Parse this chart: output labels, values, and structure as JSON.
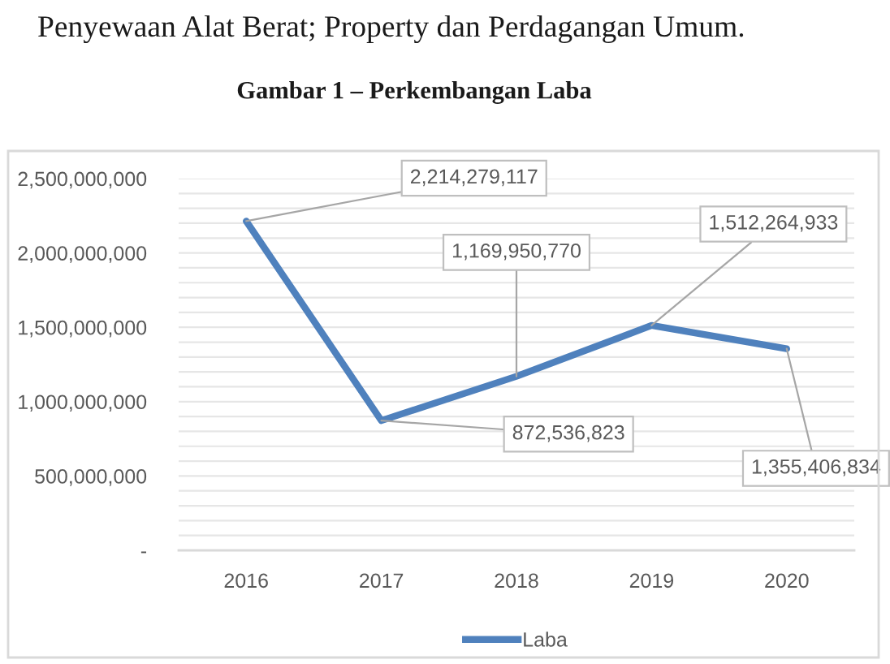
{
  "chart_data": {
    "type": "line",
    "title": "Gambar 1 – Perkembangan Laba",
    "annotations": [
      "Penyewaan Alat Berat; Property dan Perdagangan Umum."
    ],
    "categories": [
      "2016",
      "2017",
      "2018",
      "2019",
      "2020"
    ],
    "series": [
      {
        "name": "Laba",
        "color": "#4f81bd",
        "values": [
          2214279117,
          872536823,
          1169950770,
          1512264933,
          1355406834
        ],
        "value_labels": [
          "2,214,279,117",
          "872,536,823",
          "1,169,950,770",
          "1,512,264,933",
          "1,355,406,834"
        ]
      }
    ],
    "ylim": [
      0,
      2500000000
    ],
    "yticks": [
      {
        "value": 0,
        "label": "-"
      },
      {
        "value": 100000000,
        "label": null
      },
      {
        "value": 200000000,
        "label": null
      },
      {
        "value": 300000000,
        "label": null
      },
      {
        "value": 400000000,
        "label": null
      },
      {
        "value": 500000000,
        "label": "500,000,000"
      },
      {
        "value": 600000000,
        "label": null
      },
      {
        "value": 700000000,
        "label": null
      },
      {
        "value": 800000000,
        "label": null
      },
      {
        "value": 900000000,
        "label": null
      },
      {
        "value": 1000000000,
        "label": "1,000,000,000"
      },
      {
        "value": 1100000000,
        "label": null
      },
      {
        "value": 1200000000,
        "label": null
      },
      {
        "value": 1300000000,
        "label": null
      },
      {
        "value": 1400000000,
        "label": null
      },
      {
        "value": 1500000000,
        "label": "1,500,000,000"
      },
      {
        "value": 1600000000,
        "label": null
      },
      {
        "value": 1700000000,
        "label": null
      },
      {
        "value": 1800000000,
        "label": null
      },
      {
        "value": 1900000000,
        "label": null
      },
      {
        "value": 2000000000,
        "label": "2,000,000,000"
      },
      {
        "value": 2100000000,
        "label": null
      },
      {
        "value": 2200000000,
        "label": null
      },
      {
        "value": 2300000000,
        "label": null
      },
      {
        "value": 2400000000,
        "label": null
      },
      {
        "value": 2500000000,
        "label": "2,500,000,000"
      }
    ],
    "grid": "y",
    "legend": "bottom",
    "line_style": "solid"
  }
}
